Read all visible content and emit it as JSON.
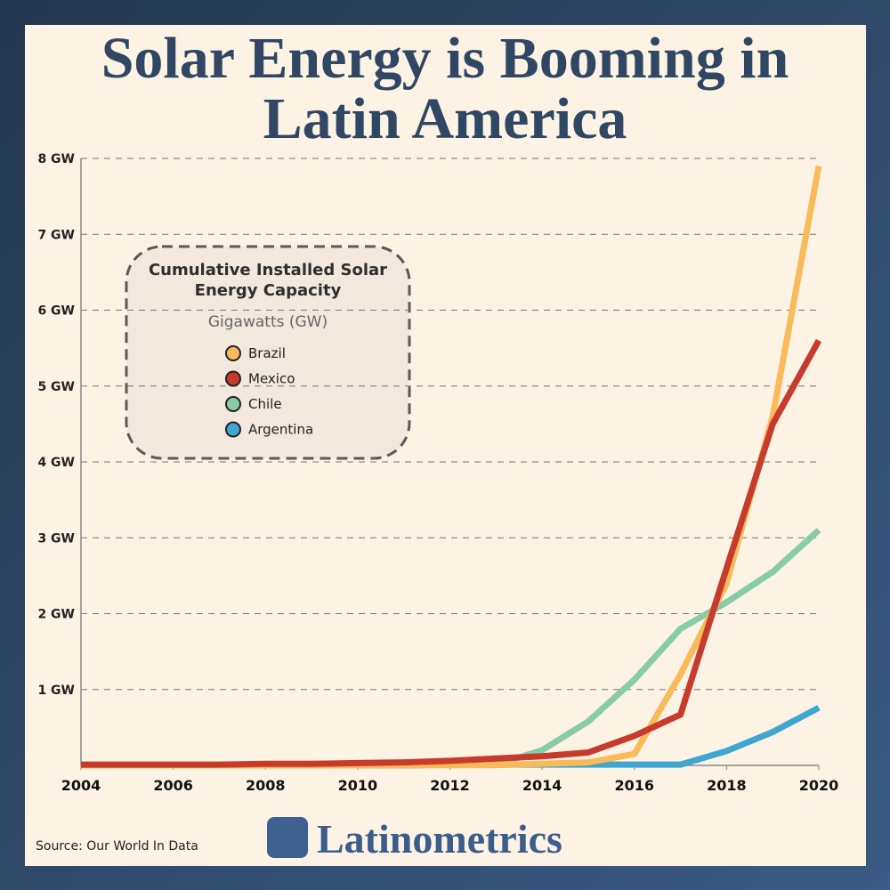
{
  "chart_data": {
    "type": "line",
    "title": "Solar Energy is Booming in Latin America",
    "legend_title": "Cumulative Installed Solar Energy Capacity",
    "legend_subtitle": "Gigawatts (GW)",
    "source": "Source: Our World In Data",
    "brand": "Latinometrics",
    "x": [
      2004,
      2005,
      2006,
      2007,
      2008,
      2009,
      2010,
      2011,
      2012,
      2013,
      2014,
      2015,
      2016,
      2017,
      2018,
      2019,
      2020
    ],
    "series": [
      {
        "name": "Argentina",
        "color": "#3fa6cf",
        "values": [
          0,
          0,
          0,
          0,
          0,
          0,
          0,
          0,
          0.01,
          0.01,
          0.01,
          0.01,
          0.01,
          0.01,
          0.19,
          0.44,
          0.76
        ]
      },
      {
        "name": "Chile",
        "color": "#88cba8",
        "values": [
          0,
          0,
          0,
          0,
          0,
          0,
          0,
          0,
          0.01,
          0.01,
          0.2,
          0.58,
          1.13,
          1.8,
          2.15,
          2.55,
          3.1
        ]
      },
      {
        "name": "Brazil",
        "color": "#f9bb5a",
        "values": [
          0,
          0,
          0,
          0,
          0,
          0,
          0.001,
          0.002,
          0.003,
          0.005,
          0.02,
          0.04,
          0.15,
          1.2,
          2.4,
          4.6,
          7.9
        ]
      },
      {
        "name": "Mexico",
        "color": "#c63b2b",
        "values": [
          0.01,
          0.01,
          0.01,
          0.01,
          0.02,
          0.02,
          0.03,
          0.04,
          0.06,
          0.09,
          0.12,
          0.17,
          0.39,
          0.67,
          2.6,
          4.5,
          5.6
        ]
      }
    ],
    "legend_order": [
      2,
      3,
      1,
      0
    ],
    "xlim": [
      2004,
      2020
    ],
    "xticks": [
      2004,
      2006,
      2008,
      2010,
      2012,
      2014,
      2016,
      2018,
      2020
    ],
    "ylim": [
      0,
      8
    ],
    "yticks": [
      {
        "value": 1,
        "label": "1 GW"
      },
      {
        "value": 2,
        "label": "2 GW"
      },
      {
        "value": 3,
        "label": "3 GW"
      },
      {
        "value": 4,
        "label": "4 GW"
      },
      {
        "value": 5,
        "label": "5 GW"
      },
      {
        "value": 6,
        "label": "6 GW"
      },
      {
        "value": 7,
        "label": "7 GW"
      },
      {
        "value": 8,
        "label": "8 GW"
      }
    ],
    "grid": true
  }
}
